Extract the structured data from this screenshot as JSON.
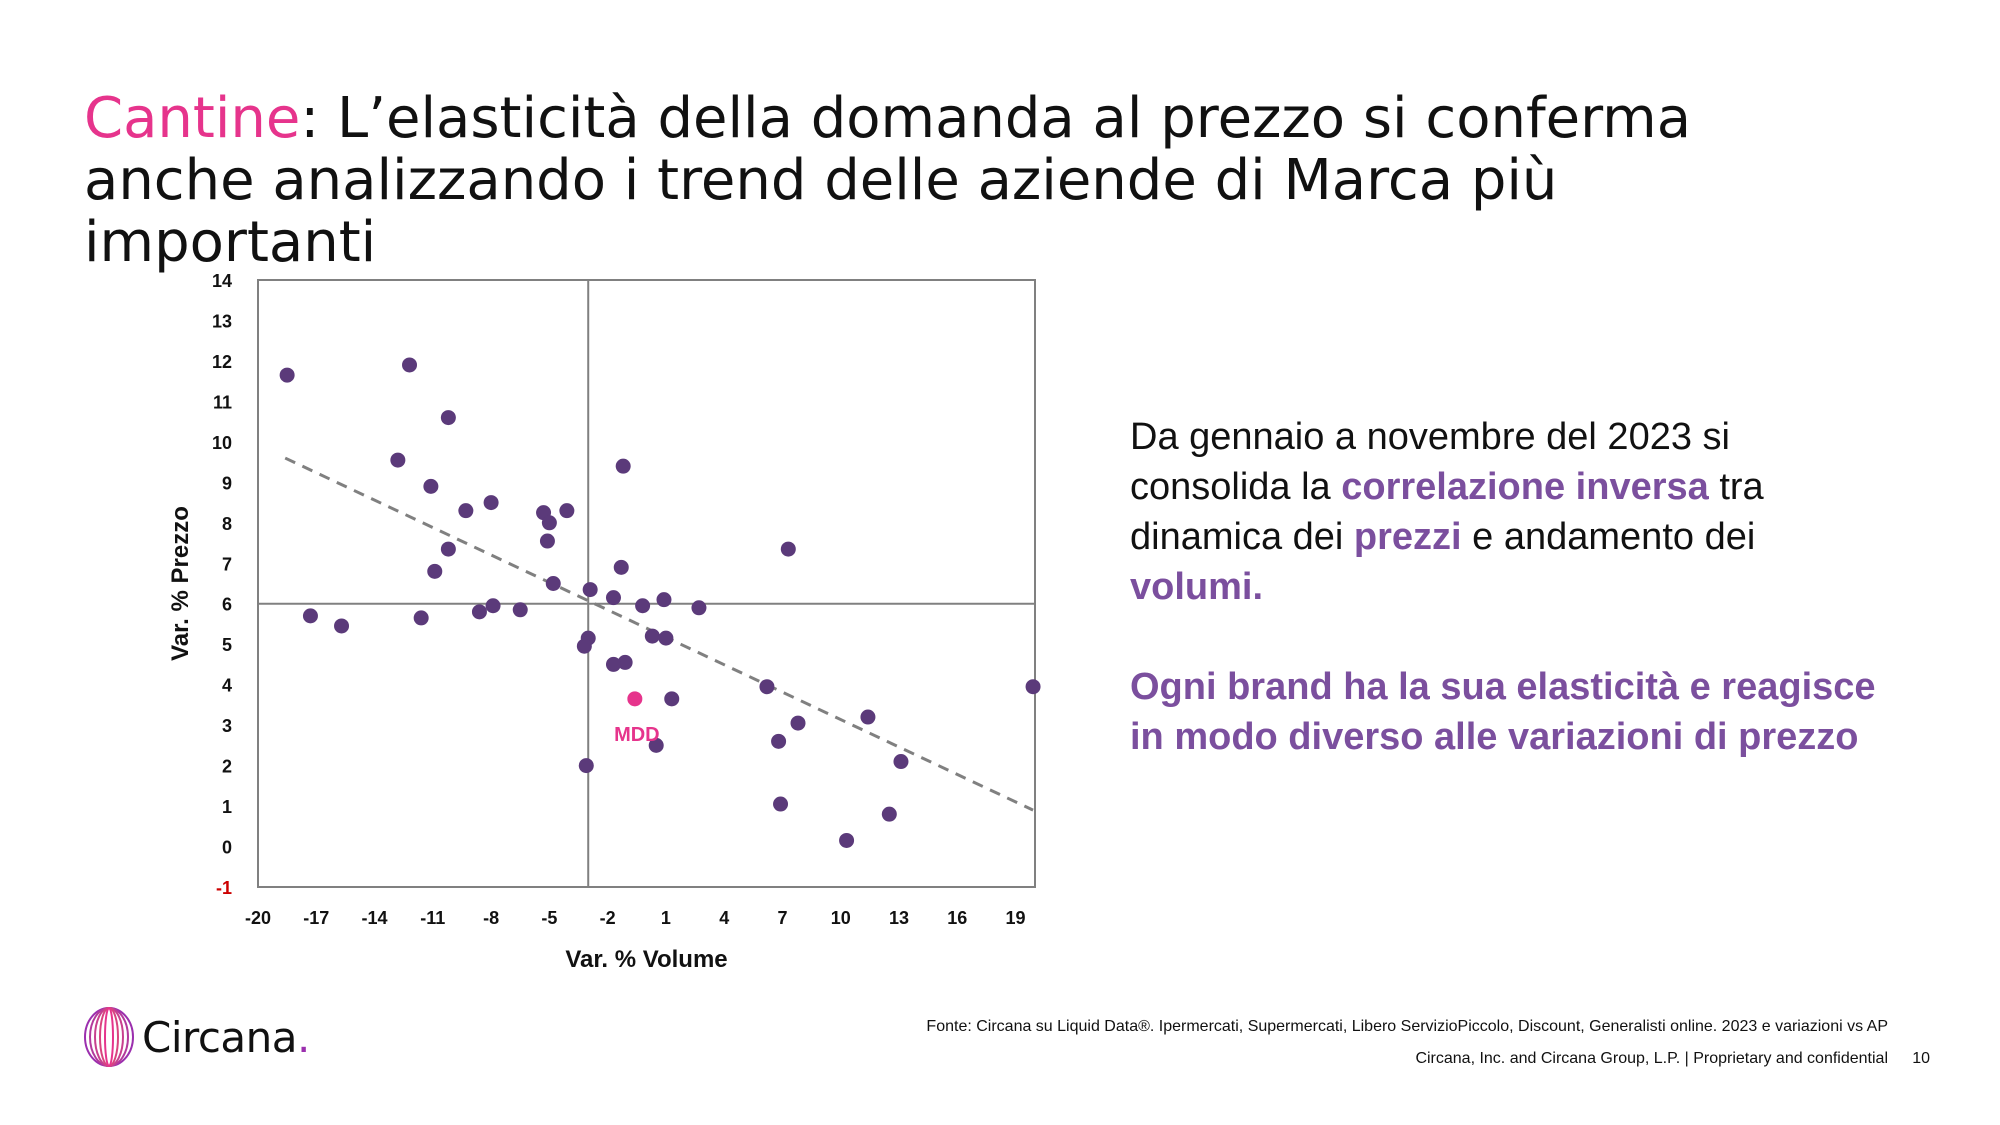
{
  "title": {
    "accent": "Cantine",
    "rest": ": L’elasticità della domanda al prezzo si conferma anche analizzando i trend delle aziende di Marca più importanti"
  },
  "colors": {
    "accent_pink": "#e6348c",
    "point_purple": "#5b3a7a",
    "highlight_purple": "#7b4f9e",
    "trend_gray": "#808080",
    "negative_tick": "#cc0000"
  },
  "chart_data": {
    "type": "scatter",
    "xlabel": "Var. % Volume",
    "ylabel": "Var. % Prezzo",
    "xlim": [
      -20,
      20
    ],
    "ylim": [
      -1,
      14
    ],
    "x_ticks": [
      "-20",
      "-17",
      "-14",
      "-11",
      "-8",
      "-5",
      "-2",
      "1",
      "4",
      "7",
      "10",
      "13",
      "16",
      "19"
    ],
    "y_ticks": [
      "-1",
      "0",
      "1",
      "2",
      "3",
      "4",
      "5",
      "6",
      "7",
      "8",
      "9",
      "10",
      "11",
      "12",
      "13",
      "14"
    ],
    "reference_lines": {
      "x": -3,
      "y": 6
    },
    "trendline": {
      "style": "dashed",
      "from": [
        -18.6,
        9.6
      ],
      "to": [
        19.9,
        0.9
      ]
    },
    "points": [
      {
        "x": -18.5,
        "y": 11.65
      },
      {
        "x": -12.2,
        "y": 11.9
      },
      {
        "x": -10.2,
        "y": 10.6
      },
      {
        "x": -12.8,
        "y": 9.55
      },
      {
        "x": -11.1,
        "y": 8.9
      },
      {
        "x": -8.0,
        "y": 8.5
      },
      {
        "x": -9.3,
        "y": 8.3
      },
      {
        "x": -5.3,
        "y": 8.25
      },
      {
        "x": -4.1,
        "y": 8.3
      },
      {
        "x": -5.0,
        "y": 8.0
      },
      {
        "x": -5.1,
        "y": 7.55
      },
      {
        "x": -10.2,
        "y": 7.35
      },
      {
        "x": -10.9,
        "y": 6.8
      },
      {
        "x": -4.8,
        "y": 6.5
      },
      {
        "x": -2.9,
        "y": 6.35
      },
      {
        "x": -1.3,
        "y": 6.9
      },
      {
        "x": -1.2,
        "y": 9.4
      },
      {
        "x": -1.7,
        "y": 6.15
      },
      {
        "x": 0.9,
        "y": 6.1
      },
      {
        "x": -0.2,
        "y": 5.95
      },
      {
        "x": 2.7,
        "y": 5.9
      },
      {
        "x": -7.9,
        "y": 5.95
      },
      {
        "x": -8.6,
        "y": 5.8
      },
      {
        "x": -6.5,
        "y": 5.85
      },
      {
        "x": -17.3,
        "y": 5.7
      },
      {
        "x": -15.7,
        "y": 5.45
      },
      {
        "x": -11.6,
        "y": 5.65
      },
      {
        "x": -3.0,
        "y": 5.15
      },
      {
        "x": -3.2,
        "y": 4.95
      },
      {
        "x": 0.3,
        "y": 5.2
      },
      {
        "x": 1.0,
        "y": 5.15
      },
      {
        "x": -1.1,
        "y": 4.55
      },
      {
        "x": -1.7,
        "y": 4.5
      },
      {
        "x": 6.2,
        "y": 3.95
      },
      {
        "x": 19.9,
        "y": 3.95
      },
      {
        "x": 1.3,
        "y": 3.65
      },
      {
        "x": 11.4,
        "y": 3.2
      },
      {
        "x": 7.8,
        "y": 3.05
      },
      {
        "x": 6.8,
        "y": 2.6
      },
      {
        "x": 0.5,
        "y": 2.5
      },
      {
        "x": 13.1,
        "y": 2.1
      },
      {
        "x": -3.1,
        "y": 2.0
      },
      {
        "x": 7.3,
        "y": 7.35
      },
      {
        "x": 6.9,
        "y": 1.05
      },
      {
        "x": 12.5,
        "y": 0.8
      },
      {
        "x": 10.3,
        "y": 0.15
      }
    ],
    "highlight": {
      "label": "MDD",
      "x": -0.6,
      "y": 3.65
    }
  },
  "side_text": {
    "p1_a": "Da gennaio a novembre del 2023 si consolida la ",
    "p1_b": "correlazione inversa",
    "p1_c": " tra dinamica dei ",
    "p1_d": "prezzi",
    "p1_e": " e andamento dei ",
    "p1_f": "volumi.",
    "p2": "Ogni brand ha la sua elasticità e reagisce in modo diverso alle variazioni di prezzo"
  },
  "source": "Fonte: Circana su Liquid Data®.  Ipermercati, Supermercati, Libero ServizioPiccolo, Discount, Generalisti online. 2023 e variazioni vs AP",
  "footer": "Circana, Inc. and Circana Group, L.P. |  Proprietary and confidential",
  "page_number": "10",
  "logo": {
    "name": "Circana",
    "dot": "."
  }
}
